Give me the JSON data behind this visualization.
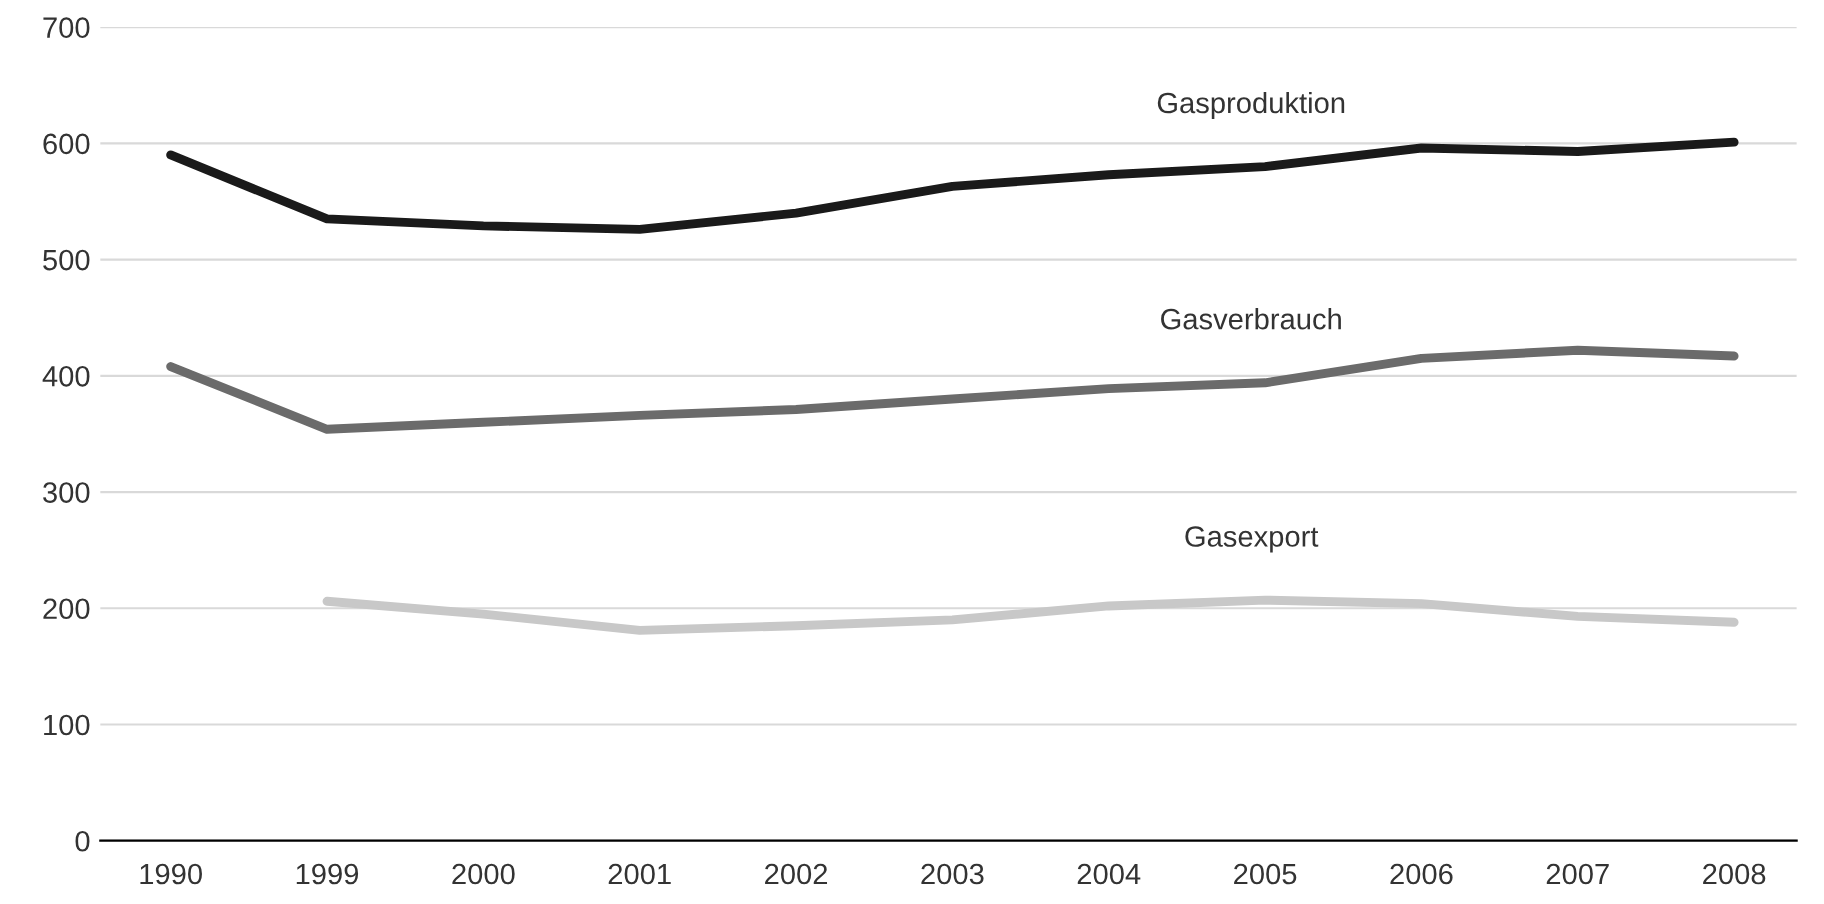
{
  "chart_data": {
    "type": "line",
    "categories": [
      "1990",
      "1999",
      "2000",
      "2001",
      "2002",
      "2003",
      "2004",
      "2005",
      "2006",
      "2007",
      "2008"
    ],
    "series": [
      {
        "name": "Gasproduktion",
        "color": "#1a1a1a",
        "values": [
          590,
          535,
          529,
          526,
          540,
          563,
          573,
          580,
          596,
          593,
          601
        ]
      },
      {
        "name": "Gasverbrauch",
        "color": "#6b6b6b",
        "values": [
          408,
          354,
          360,
          366,
          371,
          380,
          389,
          394,
          415,
          422,
          417
        ]
      },
      {
        "name": "Gasexport",
        "color": "#c8c8c8",
        "values": [
          null,
          206,
          195,
          181,
          185,
          190,
          202,
          207,
          204,
          193,
          188
        ]
      }
    ],
    "ylim": [
      0,
      700
    ],
    "yticks": [
      0,
      100,
      200,
      300,
      400,
      500,
      600,
      700
    ],
    "grid": "y",
    "legend": false,
    "marker": "none",
    "line_style": "solid"
  }
}
